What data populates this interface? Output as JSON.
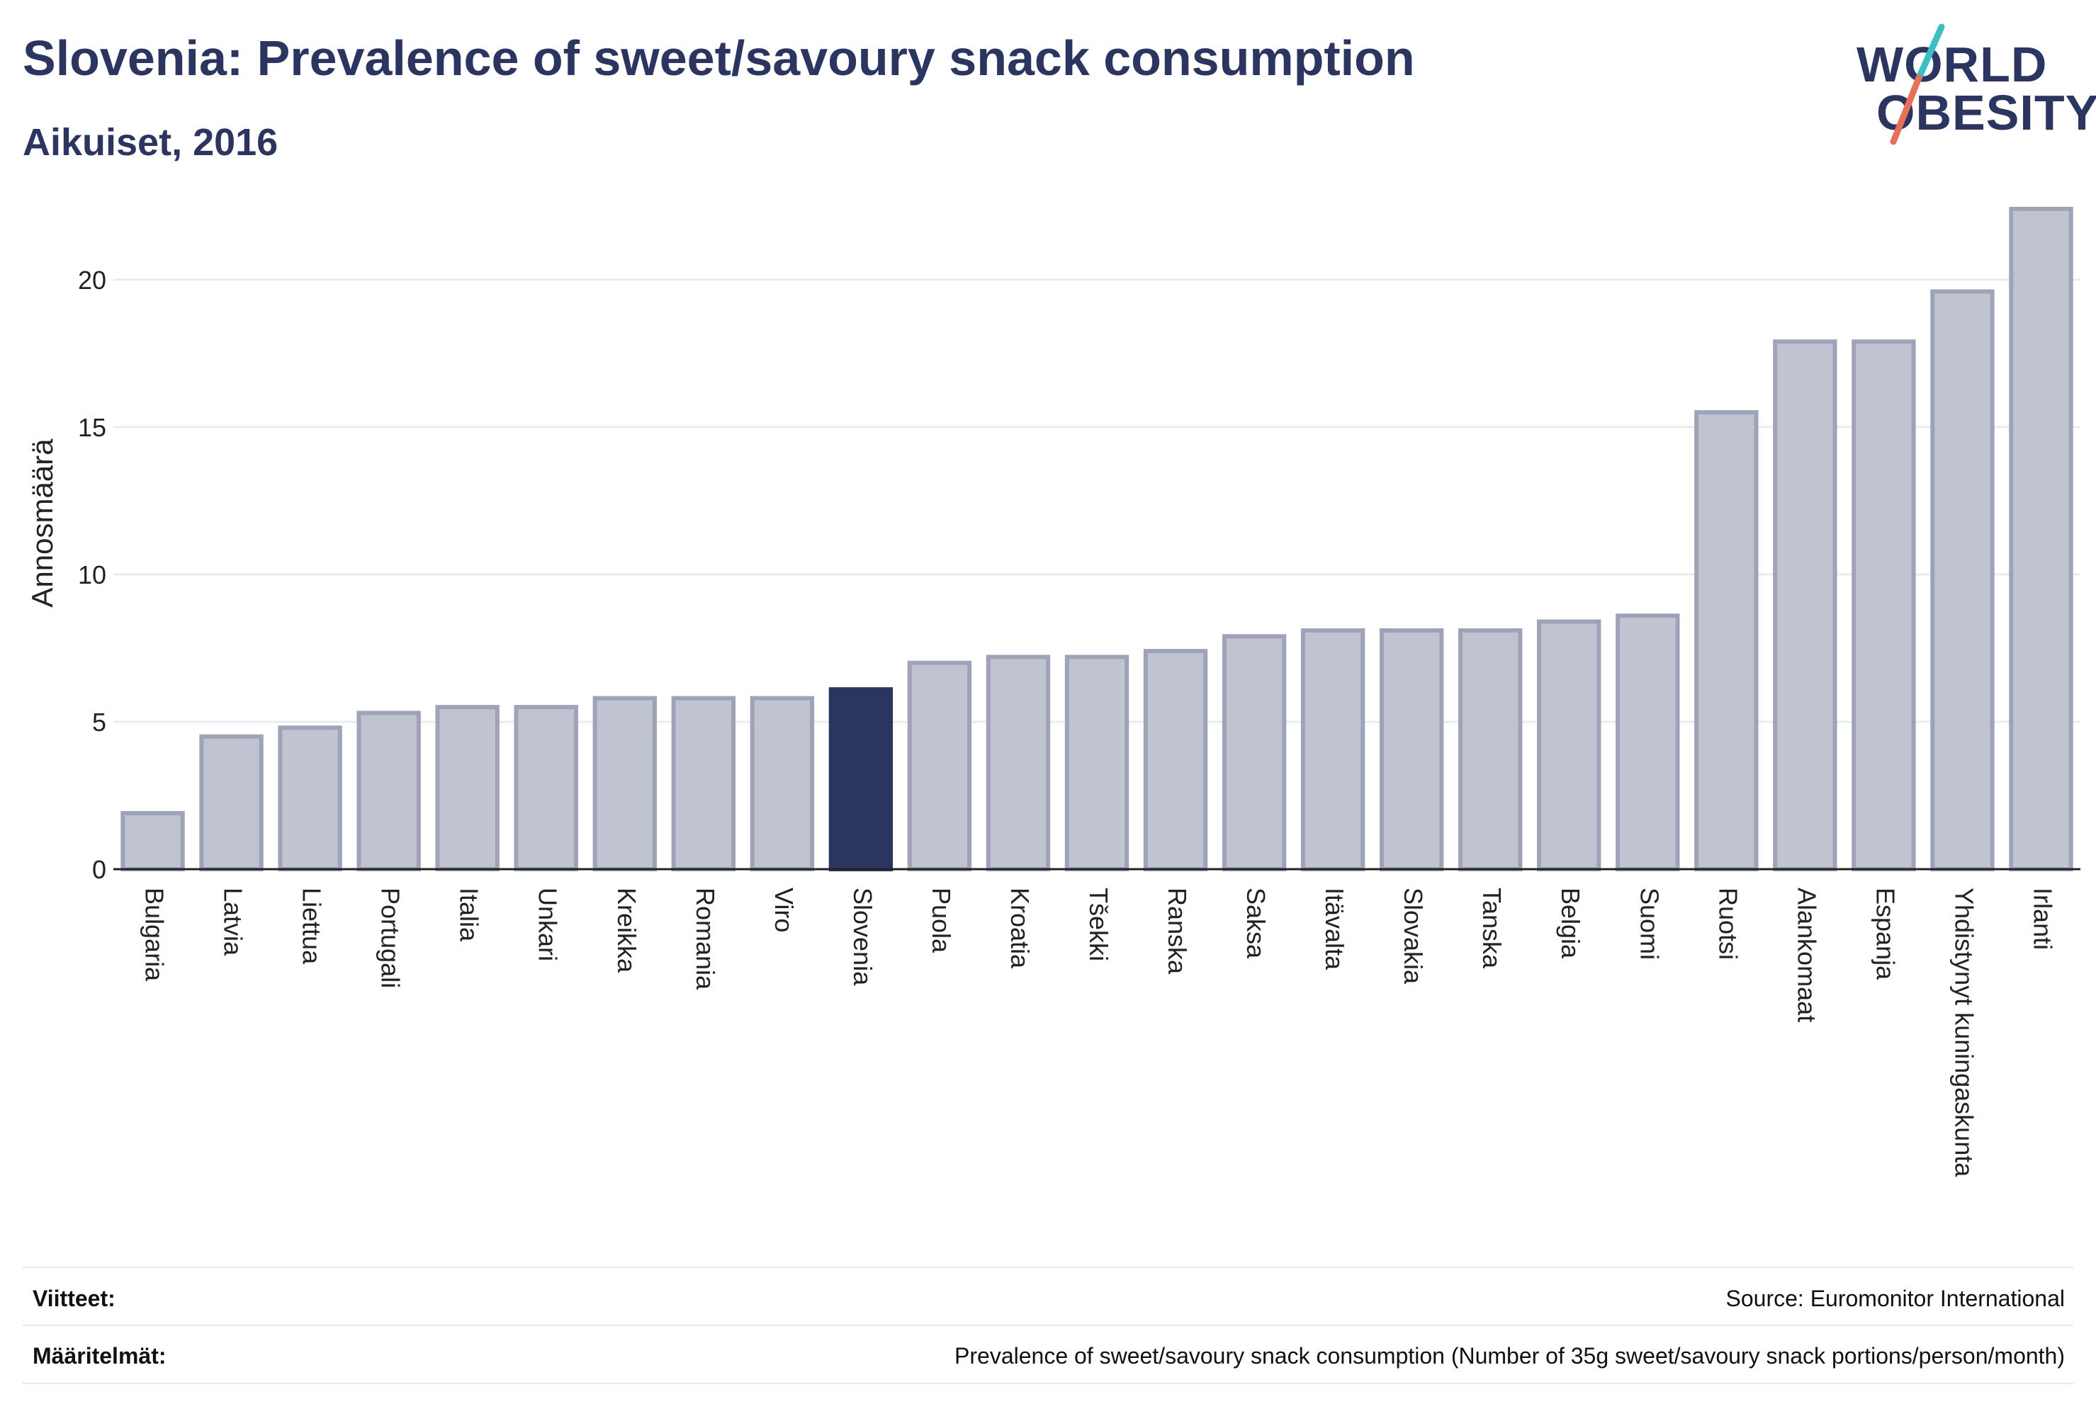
{
  "header": {
    "title": "Slovenia: Prevalence of sweet/savoury snack consumption",
    "subtitle": "Aikuiset, 2016"
  },
  "logo": {
    "line1": "WORLD",
    "line2": "OBESITY",
    "colors": {
      "text": "#2b3560",
      "slash_top": "#3bbfc4",
      "slash_bottom": "#e8705a"
    }
  },
  "colors": {
    "bar_default": "#c0c3d0",
    "bar_border": "#9ea3b8",
    "bar_highlight": "#2b3560",
    "grid": "#e9ebef",
    "axis": "#222222"
  },
  "chart_data": {
    "type": "bar",
    "ylabel": "Annosmäärä",
    "ylim": [
      0,
      23
    ],
    "yticks": [
      0,
      5,
      10,
      15,
      20
    ],
    "grid": true,
    "highlight": "Slovenia",
    "categories": [
      "Bulgaria",
      "Latvia",
      "Liettua",
      "Portugali",
      "Italia",
      "Unkari",
      "Kreikka",
      "Romania",
      "Viro",
      "Slovenia",
      "Puola",
      "Kroatia",
      "Tšekki",
      "Ranska",
      "Saksa",
      "Itävalta",
      "Slovakia",
      "Tanska",
      "Belgia",
      "Suomi",
      "Ruotsi",
      "Alankomaat",
      "Espanja",
      "Yhdistynyt kuningaskunta",
      "Irlanti"
    ],
    "values": [
      1.9,
      4.5,
      4.8,
      5.3,
      5.5,
      5.5,
      5.8,
      5.8,
      5.8,
      6.1,
      7.0,
      7.2,
      7.2,
      7.4,
      7.9,
      8.1,
      8.1,
      8.1,
      8.4,
      8.6,
      15.5,
      17.9,
      17.9,
      19.6,
      22.4
    ]
  },
  "footer": {
    "references_label": "Viitteet:",
    "references_value": "Source: Euromonitor International",
    "definitions_label": "Määritelmät:",
    "definitions_value": "Prevalence of sweet/savoury snack consumption (Number of 35g sweet/savoury snack portions/person/month)"
  }
}
